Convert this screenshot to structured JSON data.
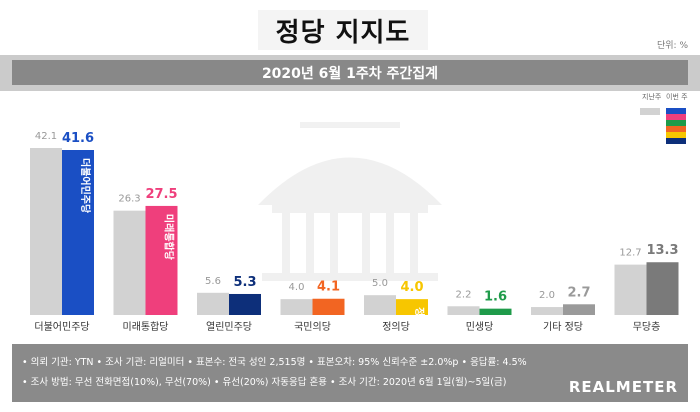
{
  "title": "정당 지지도",
  "unit_label": "단위: %",
  "subtitle": "2020년 6월 1주차 주간집계",
  "legend": {
    "prev_label": "지난주",
    "curr_label": "이번 주"
  },
  "colors": {
    "prev": "#d2d2d2",
    "curr": [
      "#1a4fc4",
      "#ef3f7c",
      "#0d2f7a",
      "#f26522",
      "#f7c600",
      "#1f9b4a",
      "#9a9a9a",
      "#7a7a7a"
    ],
    "legend_swatches": [
      "#1a4fc4",
      "#ef3f7c",
      "#1f9b4a",
      "#f26522",
      "#f7c600",
      "#0d2f7a"
    ]
  },
  "chart_data": {
    "type": "bar",
    "categories": [
      "더불어민주당",
      "미래통합당",
      "열린민주당",
      "국민의당",
      "정의당",
      "민생당",
      "기타 정당",
      "무당층"
    ],
    "series": [
      {
        "name": "지난주",
        "values": [
          42.1,
          26.3,
          5.6,
          4.0,
          5.0,
          2.2,
          2.0,
          12.7
        ]
      },
      {
        "name": "이번 주",
        "values": [
          41.6,
          27.5,
          5.3,
          4.1,
          4.0,
          1.6,
          2.7,
          13.3
        ]
      }
    ],
    "prev_labels": [
      "42.1",
      "26.3",
      "5.6",
      "4.0",
      "5.0",
      "2.2",
      "2.0",
      "12.7"
    ],
    "curr_labels": [
      "41.6",
      "27.5",
      "5.3",
      "4.1",
      "4.0",
      "1.6",
      "2.7",
      "13.3"
    ],
    "bar_texts": [
      "더불어민주당",
      "미래통합당",
      "",
      "",
      "정의당",
      "",
      "",
      ""
    ],
    "ylim": [
      0,
      45
    ],
    "grid": false,
    "legend_position": "top-right"
  },
  "footer": {
    "line1": "• 의뢰 기관: YTN  • 조사 기관: 리얼미터  • 표본수: 전국 성인 2,515명  • 표본오차: 95% 신뢰수준 ±2.0%p  • 응답률: 4.5%",
    "line2": "• 조사 방법: 무선 전화면접(10%), 무선(70%)  • 유선(20%) 자동응답 혼용  • 조사 기간: 2020년 6월 1일(월)~5일(금)",
    "brand": "REALMETER"
  }
}
